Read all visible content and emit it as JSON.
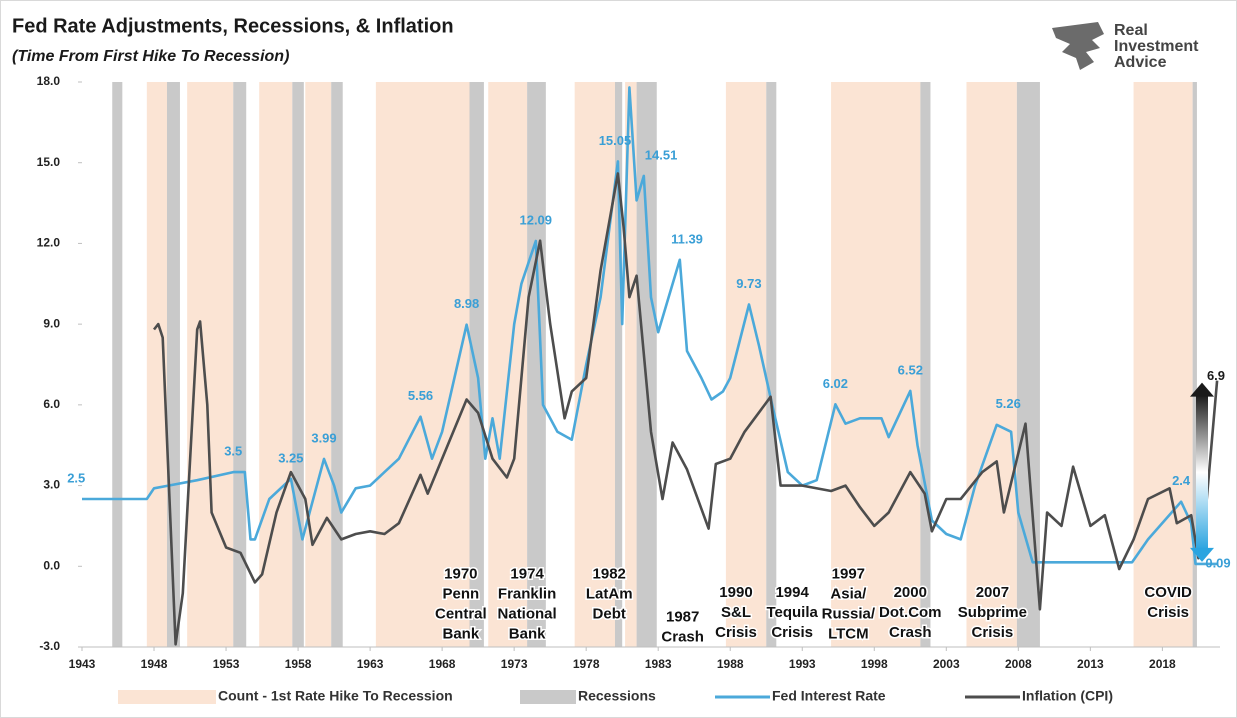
{
  "chart_data": {
    "type": "line",
    "title": "Fed Rate Adjustments, Recessions, & Inflation",
    "subtitle": "(Time From First Hike To Recession)",
    "brand": [
      "Real",
      "Investment",
      "Advice"
    ],
    "xlim": [
      1943,
      2022
    ],
    "xticks": [
      1943,
      1948,
      1953,
      1958,
      1963,
      1968,
      1973,
      1978,
      1983,
      1988,
      1993,
      1998,
      2003,
      2008,
      2013,
      2018
    ],
    "ylim": [
      -3,
      18
    ],
    "yticks": [
      {
        "value": -3,
        "label": "-3.0"
      },
      {
        "value": 0,
        "label": "0.0"
      },
      {
        "value": 3,
        "label": "3.0"
      },
      {
        "value": 6,
        "label": "6.0"
      },
      {
        "value": 9,
        "label": "9.0"
      },
      {
        "value": 12,
        "label": "12.0"
      },
      {
        "value": 15,
        "label": "15.0"
      },
      {
        "value": 18,
        "label": "18.0"
      }
    ],
    "grid": false,
    "bands": [
      {
        "name": "Count - 1st Rate Hike To Recession",
        "color": "#fbe4d4",
        "ranges": [
          [
            1947.5,
            1948.9
          ],
          [
            1950.3,
            1953.5
          ],
          [
            1955.3,
            1957.6
          ],
          [
            1958.5,
            1960.3
          ],
          [
            1963.4,
            1969.9
          ],
          [
            1971.2,
            1973.9
          ],
          [
            1977.2,
            1980.0
          ],
          [
            1980.7,
            1981.5
          ],
          [
            1987.7,
            1990.5
          ],
          [
            1995.0,
            2001.2
          ],
          [
            2004.4,
            2007.9
          ],
          [
            2016.0,
            2020.1
          ]
        ]
      },
      {
        "name": "Recessions",
        "color": "#c9c9c9",
        "ranges": [
          [
            1945.1,
            1945.8
          ],
          [
            1948.9,
            1949.8
          ],
          [
            1953.5,
            1954.4
          ],
          [
            1957.6,
            1958.4
          ],
          [
            1960.3,
            1961.1
          ],
          [
            1969.9,
            1970.9
          ],
          [
            1973.9,
            1975.2
          ],
          [
            1980.0,
            1980.5
          ],
          [
            1981.5,
            1982.9
          ],
          [
            1990.5,
            1991.2
          ],
          [
            2001.2,
            2001.9
          ],
          [
            2007.9,
            2009.5
          ],
          [
            2020.1,
            2020.4
          ]
        ]
      }
    ],
    "series": [
      {
        "name": "Fed Interest Rate",
        "color": "#4ba9da",
        "x": [
          1943,
          1947.5,
          1948,
          1949,
          1951,
          1953.5,
          1954.3,
          1954.7,
          1955,
          1956,
          1957.5,
          1958.3,
          1958.8,
          1959.8,
          1960.5,
          1961,
          1962,
          1963,
          1964,
          1965,
          1966.5,
          1967.3,
          1968,
          1969.7,
          1970.5,
          1971,
          1971.5,
          1972,
          1973,
          1973.5,
          1974.5,
          1975,
          1976,
          1977,
          1978,
          1979,
          1980.2,
          1980.5,
          1981.0,
          1981.5,
          1982,
          1982.5,
          1983,
          1984.5,
          1985,
          1986,
          1986.7,
          1987.5,
          1988,
          1989.3,
          1990,
          1991,
          1992,
          1993,
          1994,
          1995.3,
          1996,
          1997,
          1998.5,
          1999,
          2000.5,
          2001,
          2002,
          2003,
          2004,
          2005,
          2006.5,
          2007.5,
          2008,
          2009,
          2015.9,
          2017,
          2019.3,
          2020,
          2020.3,
          2021.8
        ],
        "values": [
          2.5,
          2.5,
          2.9,
          3.0,
          3.2,
          3.5,
          3.5,
          1.0,
          1.0,
          2.5,
          3.25,
          1.0,
          2.0,
          3.99,
          3.0,
          2.0,
          2.9,
          3.0,
          3.5,
          4.0,
          5.56,
          4.0,
          5.0,
          8.98,
          7.0,
          4.0,
          5.5,
          4.0,
          9.0,
          10.5,
          12.09,
          6.0,
          5.0,
          4.7,
          7.5,
          10.0,
          15.05,
          9.0,
          17.8,
          13.6,
          14.51,
          10.0,
          8.7,
          11.39,
          8.0,
          7.0,
          6.2,
          6.5,
          7.0,
          9.73,
          8.2,
          5.8,
          3.5,
          3.0,
          3.2,
          6.02,
          5.3,
          5.5,
          5.5,
          4.8,
          6.52,
          4.5,
          1.7,
          1.2,
          1.0,
          3.0,
          5.26,
          5.0,
          2.0,
          0.15,
          0.15,
          1.0,
          2.4,
          1.6,
          0.09,
          0.09
        ]
      },
      {
        "name": "Inflation (CPI)",
        "color": "#4d4d4d",
        "x": [
          1948,
          1948.3,
          1948.6,
          1949.5,
          1950,
          1951,
          1951.2,
          1951.7,
          1952,
          1953,
          1954,
          1955,
          1955.5,
          1956.5,
          1957.5,
          1958.5,
          1959,
          1960,
          1961,
          1962,
          1963,
          1964,
          1965,
          1966.5,
          1967,
          1968,
          1969.7,
          1970.5,
          1971.5,
          1972.5,
          1973,
          1974,
          1974.8,
          1975.5,
          1976.5,
          1977,
          1978,
          1979,
          1980.2,
          1980.6,
          1981,
          1981.5,
          1982.5,
          1983.3,
          1984,
          1985,
          1986.5,
          1987,
          1988,
          1989,
          1990.8,
          1991.5,
          1993,
          1995,
          1996,
          1997,
          1998,
          1999,
          2000.5,
          2001.5,
          2002,
          2003,
          2004,
          2005.5,
          2006.5,
          2007,
          2008.5,
          2009.5,
          2010,
          2011,
          2011.8,
          2013,
          2014,
          2015,
          2016,
          2017,
          2018.5,
          2019,
          2020,
          2020.5,
          2021,
          2021.8
        ],
        "values": [
          8.8,
          9.0,
          8.5,
          -2.9,
          -1.0,
          8.8,
          9.1,
          6.0,
          2.0,
          0.7,
          0.5,
          -0.6,
          -0.3,
          2.0,
          3.5,
          2.5,
          0.8,
          1.8,
          1.0,
          1.2,
          1.3,
          1.2,
          1.6,
          3.4,
          2.7,
          4.0,
          6.2,
          5.7,
          4.0,
          3.3,
          4.0,
          10.0,
          12.1,
          9.0,
          5.5,
          6.5,
          7.0,
          11.0,
          14.6,
          12.6,
          10.0,
          10.8,
          5.0,
          2.5,
          4.6,
          3.6,
          1.4,
          3.8,
          4.0,
          5.0,
          6.3,
          3.0,
          3.0,
          2.8,
          3.0,
          2.2,
          1.5,
          2.0,
          3.5,
          2.7,
          1.3,
          2.5,
          2.5,
          3.5,
          3.9,
          2.0,
          5.3,
          -1.6,
          2.0,
          1.5,
          3.7,
          1.5,
          1.9,
          -0.1,
          1.0,
          2.5,
          2.9,
          1.6,
          1.9,
          0.3,
          2.0,
          6.9
        ]
      }
    ],
    "rate_peaks": {
      "x": [
        1942.6,
        1953.5,
        1957.5,
        1959.8,
        1966.5,
        1969.7,
        1974.5,
        1980.0,
        1983.2,
        1985.0,
        1989.3,
        1995.3,
        2000.5,
        2007.3,
        2019.3
      ],
      "values": [
        2.5,
        3.5,
        3.25,
        3.99,
        5.56,
        8.98,
        12.09,
        15.05,
        14.51,
        11.39,
        9.73,
        6.02,
        6.52,
        5.26,
        2.4
      ]
    },
    "end_values": [
      6.9,
      0.09
    ],
    "events": [
      {
        "lines": [
          "1970",
          "Penn",
          "Central",
          "Bank"
        ],
        "x": 1969.3,
        "y": -0.3
      },
      {
        "lines": [
          "1974",
          "Franklin",
          "National",
          "Bank"
        ],
        "x": 1973.9,
        "y": -0.3
      },
      {
        "lines": [
          "1982",
          "LatAm",
          "Debt"
        ],
        "x": 1979.6,
        "y": -0.3
      },
      {
        "lines": [
          "1987",
          "Crash"
        ],
        "x": 1984.7,
        "y": -1.9
      },
      {
        "lines": [
          "1990",
          "S&L",
          "Crisis"
        ],
        "x": 1988.4,
        "y": -1.0
      },
      {
        "lines": [
          "1994",
          "Tequila",
          "Crisis"
        ],
        "x": 1992.3,
        "y": -1.0
      },
      {
        "lines": [
          "1997",
          "Asia/",
          "Russia/",
          "LTCM"
        ],
        "x": 1996.2,
        "y": -0.3
      },
      {
        "lines": [
          "2000",
          "Dot.Com",
          "Crash"
        ],
        "x": 2000.5,
        "y": -1.0
      },
      {
        "lines": [
          "2007",
          "Subprime",
          "Crisis"
        ],
        "x": 2006.2,
        "y": -1.0
      },
      {
        "lines": [
          "COVID",
          "Crisis"
        ],
        "x": 2018.4,
        "y": -1.0
      }
    ]
  }
}
